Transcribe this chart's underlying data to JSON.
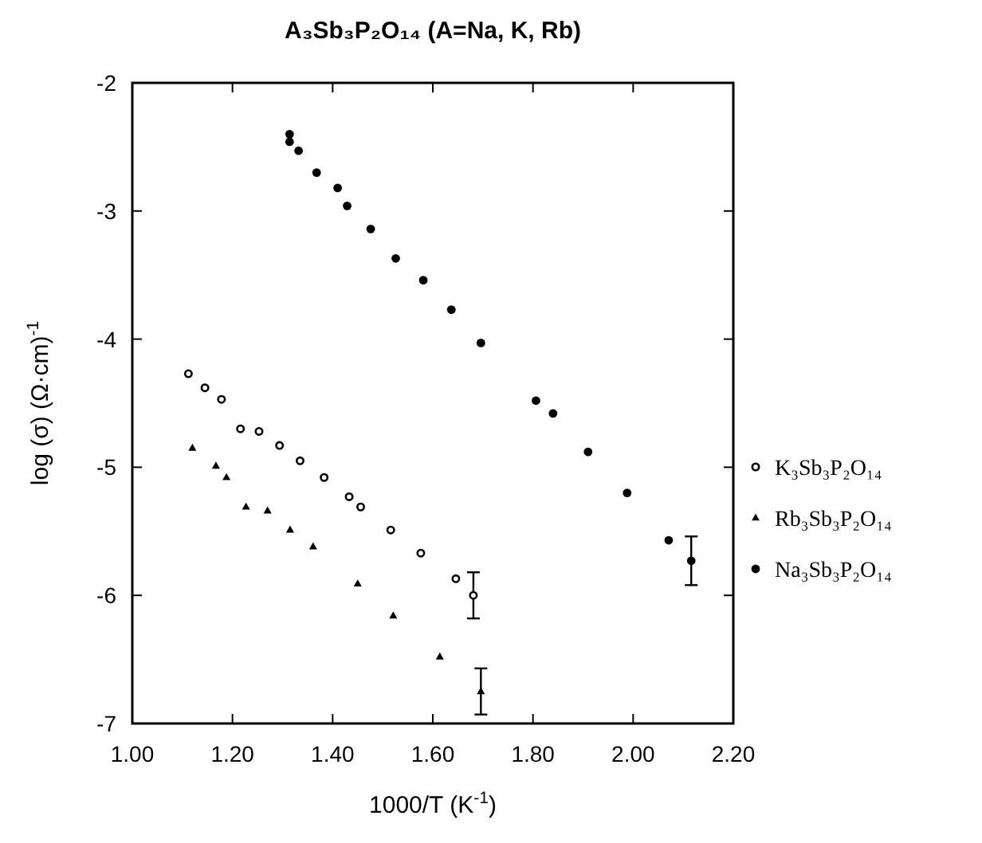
{
  "chart_data": {
    "type": "scatter",
    "title": "A₃Sb₃P₂O₁₄ (A=Na, K, Rb)",
    "xlabel": "1000/T (K$^{-1}$)",
    "ylabel": "log (σ) (Ω·cm)$^{-1}$",
    "xlim": [
      1,
      2.2
    ],
    "ylim": [
      -7,
      -2
    ],
    "xticks": [
      {
        "value": 1,
        "label": "1.00"
      },
      {
        "value": 1.2,
        "label": "1.20"
      },
      {
        "value": 1.4,
        "label": "1.40"
      },
      {
        "value": 1.6,
        "label": "1.60"
      },
      {
        "value": 1.8,
        "label": "1.80"
      },
      {
        "value": 2,
        "label": "2.00"
      },
      {
        "value": 2.2,
        "label": "2.20"
      }
    ],
    "yticks": [
      -2,
      -3,
      -4,
      -5,
      -6,
      -7
    ],
    "grid": false,
    "legend": "right",
    "series": [
      {
        "name": "K₃Sb₃P₂O₁₄",
        "color": "#000000",
        "marker": "circle-open",
        "x": [
          1.112,
          1.145,
          1.178,
          1.216,
          1.253,
          1.294,
          1.335,
          1.383,
          1.433,
          1.456,
          1.516,
          1.576,
          1.646,
          1.681
        ],
        "values": [
          -4.27,
          -4.38,
          -4.47,
          -4.7,
          -4.72,
          -4.83,
          -4.95,
          -5.08,
          -5.23,
          -5.31,
          -5.49,
          -5.67,
          -5.87,
          -6.0
        ],
        "errors": [
          null,
          null,
          null,
          null,
          null,
          null,
          null,
          null,
          null,
          null,
          null,
          null,
          null,
          0.18
        ]
      },
      {
        "name": "Rb₃Sb₃P₂O₁₄",
        "color": "#000000",
        "marker": "triangle",
        "x": [
          1.12,
          1.167,
          1.188,
          1.227,
          1.27,
          1.315,
          1.361,
          1.45,
          1.521,
          1.614,
          1.696
        ],
        "values": [
          -4.85,
          -4.99,
          -5.08,
          -5.31,
          -5.34,
          -5.49,
          -5.62,
          -5.91,
          -6.16,
          -6.48,
          -6.75
        ],
        "errors": [
          null,
          null,
          null,
          null,
          null,
          null,
          null,
          null,
          null,
          null,
          0.18
        ]
      },
      {
        "name": "Na₃Sb₃P₂O₁₄",
        "color": "#000000",
        "marker": "circle",
        "x": [
          1.314,
          1.314,
          1.332,
          1.368,
          1.41,
          1.429,
          1.476,
          1.526,
          1.581,
          1.637,
          1.696,
          1.806,
          1.84,
          1.91,
          1.988,
          2.071,
          2.116
        ],
        "values": [
          -2.4,
          -2.46,
          -2.53,
          -2.7,
          -2.82,
          -2.96,
          -3.14,
          -3.37,
          -3.54,
          -3.77,
          -4.03,
          -4.48,
          -4.58,
          -4.88,
          -5.2,
          -5.57,
          -5.73
        ],
        "errors": [
          null,
          null,
          null,
          null,
          null,
          null,
          null,
          null,
          null,
          null,
          null,
          null,
          null,
          null,
          null,
          null,
          0.19
        ]
      }
    ]
  }
}
